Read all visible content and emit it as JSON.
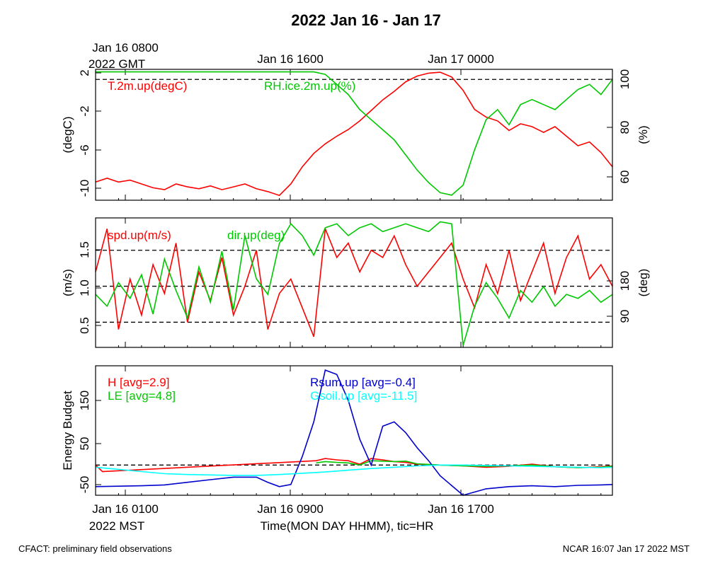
{
  "title": "2022 Jan 16 - Jan 17",
  "top_axis": {
    "ticks": [
      {
        "line1": "Jan 16 0800",
        "line2": "2022 GMT"
      },
      {
        "line1": "Jan 16 1600",
        "line2": ""
      },
      {
        "line1": "Jan 17 0000",
        "line2": ""
      }
    ]
  },
  "bottom_axis": {
    "ticks": [
      {
        "line1": "Jan 16 0100",
        "line2": "2022 MST"
      },
      {
        "line1": "Jan 16 0900",
        "line2": ""
      },
      {
        "line1": "Jan 16 1700",
        "line2": ""
      }
    ],
    "label": "Time(MON DAY HHMM), tic=HR"
  },
  "footer": {
    "left": "CFACT: preliminary field observations",
    "right": "NCAR 16:07 Jan 17 2022 MST"
  },
  "chart_data": [
    {
      "type": "line",
      "ylabel": "(degC)",
      "y2label": "(%)",
      "ylim": [
        -11.5,
        2.2
      ],
      "y2lim": [
        50,
        102
      ],
      "yticks": [
        "2",
        "-2",
        "-6",
        "-10"
      ],
      "y2ticks": [
        "100",
        "80",
        "60"
      ],
      "ref_lines_y2": [
        98
      ],
      "x_hours": [
        0,
        22.5
      ],
      "series": [
        {
          "name": "T.2m.up(degC)",
          "axis": "left",
          "color": "#ff0000",
          "x": [
            0,
            0.5,
            1,
            1.5,
            2,
            2.5,
            3,
            3.5,
            4,
            4.5,
            5,
            5.5,
            6,
            6.5,
            7,
            7.5,
            8,
            8.5,
            9,
            9.5,
            10,
            10.5,
            11,
            11.5,
            12,
            12.5,
            13,
            13.5,
            14,
            14.5,
            15,
            15.5,
            16,
            16.5,
            17,
            17.5,
            18,
            18.5,
            19,
            19.5,
            20,
            20.5,
            21,
            21.5,
            22,
            22.5
          ],
          "values": [
            -9.6,
            -9.2,
            -9.6,
            -9.4,
            -9.8,
            -10.2,
            -10.4,
            -9.8,
            -10.1,
            -10.3,
            -10.0,
            -10.4,
            -10.1,
            -9.8,
            -10.3,
            -10.6,
            -11.0,
            -9.8,
            -8.0,
            -6.6,
            -5.6,
            -4.8,
            -4.1,
            -3.2,
            -2.1,
            -1.0,
            -0.1,
            0.9,
            1.5,
            1.8,
            1.9,
            1.4,
            0.0,
            -2.0,
            -2.8,
            -3.2,
            -4.2,
            -3.5,
            -3.8,
            -4.4,
            -3.8,
            -4.8,
            -5.8,
            -5.4,
            -6.5,
            -8.0
          ]
        },
        {
          "name": "RH.ice.2m.up(%)",
          "axis": "right",
          "color": "#00c800",
          "x": [
            0,
            1,
            2,
            3,
            4,
            5,
            6,
            7,
            8,
            9,
            9.5,
            10,
            10.5,
            11,
            11.5,
            12,
            12.5,
            13,
            13.5,
            14,
            14.5,
            15,
            15.5,
            16,
            16.5,
            17,
            17.5,
            18,
            18.5,
            19,
            19.5,
            20,
            20.5,
            21,
            21.5,
            22,
            22.5
          ],
          "values": [
            101,
            101,
            101,
            101,
            101,
            101,
            101,
            101,
            101,
            101,
            101,
            100,
            96,
            92,
            86,
            82,
            78,
            74,
            68,
            62,
            57,
            53,
            52,
            56,
            70,
            82,
            86,
            80,
            88,
            90,
            88,
            86,
            90,
            94,
            96,
            92,
            98
          ]
        }
      ]
    },
    {
      "type": "line",
      "ylabel": "(m/s)",
      "y2label": "(deg)",
      "ylim": [
        0.15,
        1.95
      ],
      "y2lim": [
        15,
        345
      ],
      "yticks": [
        "1.5",
        "1.0",
        "0.5"
      ],
      "y2ticks": [
        "180",
        "90"
      ],
      "ref_lines_y": [
        1.5,
        1.0,
        0.5
      ],
      "x_hours": [
        0,
        22.5
      ],
      "series": [
        {
          "name": "spd.up(m/s)",
          "axis": "left",
          "color": "#ff0000",
          "x": [
            0,
            0.5,
            1,
            1.5,
            2,
            2.5,
            3,
            3.5,
            4,
            4.5,
            5,
            5.5,
            6,
            6.5,
            7,
            7.5,
            8,
            8.5,
            9,
            9.5,
            10,
            10.5,
            11,
            11.5,
            12,
            12.5,
            13,
            13.5,
            14,
            14.5,
            15,
            15.5,
            16,
            16.5,
            17,
            17.5,
            18,
            18.5,
            19,
            19.5,
            20,
            20.5,
            21,
            21.5,
            22,
            22.5
          ],
          "values": [
            1.2,
            1.8,
            0.4,
            1.1,
            0.6,
            1.3,
            0.9,
            1.6,
            0.5,
            1.2,
            0.8,
            1.4,
            0.6,
            1.0,
            1.5,
            0.4,
            0.9,
            1.1,
            0.7,
            0.3,
            1.8,
            1.4,
            1.6,
            1.2,
            1.5,
            1.4,
            1.7,
            1.3,
            1.0,
            1.2,
            1.4,
            1.6,
            1.1,
            0.7,
            1.3,
            0.9,
            1.5,
            0.8,
            1.2,
            1.6,
            0.9,
            1.4,
            1.7,
            1.1,
            1.3,
            1.0
          ]
        },
        {
          "name": "dir.up(deg)",
          "axis": "right",
          "color": "#00c800",
          "x": [
            0,
            0.5,
            1,
            1.5,
            2,
            2.5,
            3,
            3.5,
            4,
            4.5,
            5,
            5.5,
            6,
            6.5,
            7,
            7.5,
            8,
            8.5,
            9,
            9.5,
            10,
            10.5,
            11,
            11.5,
            12,
            12.5,
            13,
            13.5,
            14,
            14.5,
            15,
            15.5,
            16,
            16.5,
            17,
            17.5,
            18,
            18.5,
            19,
            19.5,
            20,
            20.5,
            21,
            21.5,
            22,
            22.5
          ],
          "values": [
            150,
            120,
            180,
            140,
            200,
            100,
            240,
            160,
            90,
            220,
            130,
            260,
            110,
            300,
            190,
            150,
            280,
            330,
            300,
            250,
            320,
            330,
            300,
            320,
            330,
            310,
            320,
            330,
            320,
            310,
            335,
            330,
            20,
            120,
            180,
            140,
            90,
            160,
            130,
            170,
            120,
            150,
            140,
            160,
            130,
            150
          ]
        }
      ]
    },
    {
      "type": "line",
      "ylabel": "Energy Budget",
      "ylim": [
        -70,
        230
      ],
      "yticks": [
        "150",
        "50",
        "-50"
      ],
      "ref_lines_y": [
        0
      ],
      "x_hours": [
        0,
        22.5
      ],
      "series": [
        {
          "name": "H",
          "avg_label": "[avg=2.9]",
          "color": "#ff0000",
          "x": [
            0,
            0.3,
            9.6,
            10,
            10.5,
            11,
            11.5,
            12,
            12.5,
            13,
            13.5,
            14,
            15,
            16,
            17,
            18,
            19,
            20,
            21,
            22,
            22.5
          ],
          "values": [
            0,
            -15,
            10,
            15,
            12,
            10,
            2,
            15,
            12,
            8,
            6,
            2,
            0,
            -2,
            -5,
            -3,
            2,
            -4,
            -6,
            -4,
            -2
          ]
        },
        {
          "name": "LE",
          "avg_label": "[avg=4.8]",
          "color": "#00c800",
          "x": [
            9.6,
            10,
            10.5,
            11,
            11.5,
            12,
            12.5,
            13,
            13.5,
            14,
            15,
            16,
            17,
            18,
            19,
            20,
            21,
            22,
            22.5
          ],
          "values": [
            5,
            8,
            6,
            5,
            0,
            10,
            9,
            8,
            9,
            3,
            0,
            -2,
            -3,
            -2,
            0,
            -4,
            -6,
            -5,
            -3
          ]
        },
        {
          "name": "Rsum.up",
          "avg_label": "[avg=-0.4]",
          "color": "#0000cc",
          "x": [
            0,
            1,
            2,
            3,
            4,
            5,
            6,
            7,
            7.5,
            8,
            8.5,
            9,
            9.5,
            10,
            10.5,
            11,
            11.5,
            12,
            12.5,
            13,
            13.5,
            14,
            14.5,
            15,
            16,
            17,
            18,
            19,
            20,
            21,
            22,
            22.5
          ],
          "values": [
            -50,
            -49,
            -48,
            -46,
            -40,
            -34,
            -28,
            -28,
            -40,
            -50,
            -45,
            20,
            100,
            220,
            210,
            150,
            60,
            0,
            90,
            100,
            75,
            40,
            10,
            -25,
            -75,
            -55,
            -50,
            -48,
            -50,
            -47,
            -46,
            -45
          ]
        },
        {
          "name": "Gsoil.up",
          "avg_label": "[avg=-11.5]",
          "color": "#00ffff",
          "x": [
            0,
            1,
            2,
            3,
            4,
            5,
            6,
            7,
            8,
            9,
            10,
            11,
            12,
            13,
            14,
            15,
            16,
            17,
            18,
            19,
            20,
            21,
            22,
            22.5
          ],
          "values": [
            -5,
            -10,
            -15,
            -20,
            -22,
            -23,
            -24,
            -24,
            -22,
            -19,
            -16,
            -12,
            -8,
            -5,
            -2,
            0,
            0,
            -1,
            -2,
            -3,
            -4,
            -5,
            -6,
            -5
          ]
        }
      ]
    }
  ]
}
